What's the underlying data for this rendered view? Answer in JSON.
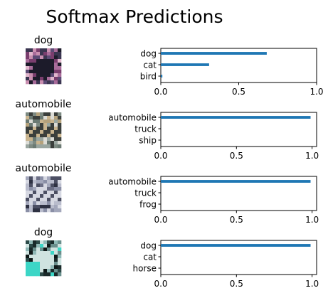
{
  "title": "Softmax Predictions",
  "colors": {
    "bar": "#1f77b4",
    "axes": "#000000"
  },
  "x_ticks": [
    0,
    0.5,
    1
  ],
  "chart_data": [
    {
      "type": "bar",
      "orientation": "horizontal",
      "image_title": "dog",
      "image_kind": "dog-photo",
      "categories": [
        "dog",
        "cat",
        "bird"
      ],
      "values": [
        0.68,
        0.31,
        0.01
      ],
      "xlim": [
        0,
        1
      ],
      "tick_labels": [
        "0.0",
        "0.5",
        "1.0"
      ]
    },
    {
      "type": "bar",
      "orientation": "horizontal",
      "image_title": "automobile",
      "image_kind": "car-photo",
      "categories": [
        "automobile",
        "truck",
        "ship"
      ],
      "values": [
        0.99,
        0.0,
        0.0
      ],
      "xlim": [
        0,
        1.03
      ],
      "tick_labels": [
        "0.0",
        "0.5",
        "1.0"
      ]
    },
    {
      "type": "bar",
      "orientation": "horizontal",
      "image_title": "automobile",
      "image_kind": "car-photo",
      "categories": [
        "automobile",
        "truck",
        "frog"
      ],
      "values": [
        0.99,
        0.0,
        0.0
      ],
      "xlim": [
        0,
        1.03
      ],
      "tick_labels": [
        "0.0",
        "0.5",
        "1.0"
      ]
    },
    {
      "type": "bar",
      "orientation": "horizontal",
      "image_title": "dog",
      "image_kind": "dog-photo",
      "categories": [
        "dog",
        "cat",
        "horse"
      ],
      "values": [
        0.99,
        0.0,
        0.0
      ],
      "xlim": [
        0,
        1.03
      ],
      "tick_labels": [
        "0.0",
        "0.5",
        "1.0"
      ]
    }
  ]
}
